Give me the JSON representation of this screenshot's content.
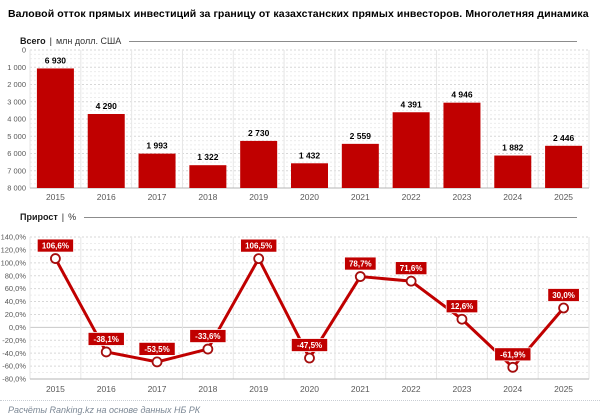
{
  "title": "Валовой отток прямых инвестиций за границу от казахстанских прямых инвесторов. Многолетняя динамика",
  "footer": {
    "source": "Расчёты Ranking.kz на основе данных НБ РК"
  },
  "colors": {
    "accent": "#c00000",
    "accent_dark": "#a50d0d",
    "marker_fill": "#ffffff",
    "box_text": "#ffffff",
    "value_label": "#000000",
    "axis_text": "#595959",
    "grid_major": "#d7d7d7",
    "grid_minor": "#ececec",
    "grid_vertical": "#e6e6e6",
    "axis_line": "#b5b5b5",
    "zero_line": "#c8c8c8"
  },
  "chart_data": [
    {
      "type": "bar",
      "panel_label": "Всего",
      "separator": "|",
      "unit_label": "млн долл. США",
      "categories": [
        "2015",
        "2016",
        "2017",
        "2018",
        "2019",
        "2020",
        "2021",
        "2022",
        "2023",
        "2024",
        "2025"
      ],
      "values": [
        6930,
        4290,
        1993,
        1322,
        2730,
        1432,
        2559,
        4391,
        4946,
        1882,
        2446
      ],
      "value_labels": [
        "6 930",
        "4 290",
        "1 993",
        "1 322",
        "2 730",
        "1 432",
        "2 559",
        "4 391",
        "4 946",
        "1 882",
        "2 446"
      ],
      "ylim": [
        0,
        8000
      ],
      "ytick_step": 1000,
      "yminor_step": 250,
      "ytick_labels": [
        "0",
        "1 000",
        "2 000",
        "3 000",
        "4 000",
        "5 000",
        "6 000",
        "7 000",
        "8 000"
      ],
      "grid": true,
      "legend_position": "none"
    },
    {
      "type": "line",
      "panel_label": "Прирост",
      "separator": "|",
      "unit_label": "%",
      "categories": [
        "2015",
        "2016",
        "2017",
        "2018",
        "2019",
        "2020",
        "2021",
        "2022",
        "2023",
        "2024",
        "2025"
      ],
      "values": [
        106.6,
        -38.1,
        -53.5,
        -33.6,
        106.5,
        -47.5,
        78.7,
        71.6,
        12.6,
        -61.9,
        30.0
      ],
      "value_labels": [
        "106,6%",
        "-38,1%",
        "-53,5%",
        "-33,6%",
        "106,5%",
        "-47,5%",
        "78,7%",
        "71,6%",
        "12,6%",
        "-61,9%",
        "30,0%"
      ],
      "ylim": [
        -80,
        140
      ],
      "ytick_step": 20,
      "yminor_step": 10,
      "ytick_labels": [
        "140,0%",
        "120,0%",
        "100,0%",
        "80,0%",
        "60,0%",
        "40,0%",
        "20,0%",
        "0,0%",
        "-20,0%",
        "-40,0%",
        "-60,0%",
        "-80,0%"
      ],
      "grid": true,
      "legend_position": "none"
    }
  ]
}
